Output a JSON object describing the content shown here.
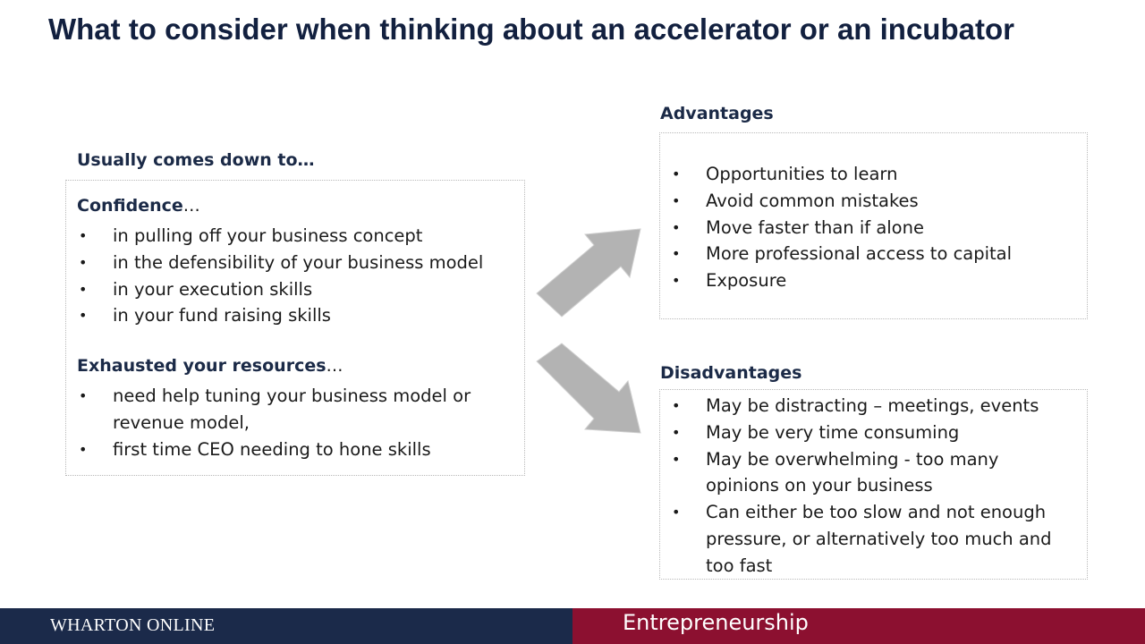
{
  "title": "What to consider when thinking about an accelerator or an incubator",
  "left": {
    "label": "Usually comes down to…",
    "confidence": {
      "heading": "Confidence",
      "suffix": "…",
      "items": [
        "in pulling off your business concept",
        "in the defensibility of your business model",
        "in your execution skills",
        "in your fund raising skills"
      ]
    },
    "exhausted": {
      "heading": "Exhausted your resources",
      "suffix": "…",
      "items": [
        "need help tuning your business model or revenue model,",
        "first time CEO needing to hone skills"
      ]
    }
  },
  "advantages": {
    "label": "Advantages",
    "items": [
      "Opportunities to learn",
      "Avoid common mistakes",
      "Move faster than if alone",
      "More professional access to capital",
      "Exposure"
    ]
  },
  "disadvantages": {
    "label": "Disadvantages",
    "items": [
      "May be distracting – meetings, events",
      "May be very time consuming",
      "May be overwhelming -  too many opinions on your business",
      "Can either be too slow and not enough pressure, or alternatively too much and too fast"
    ]
  },
  "bullet_glyph": "•",
  "footer": {
    "left_text": "WHARTON ONLINE",
    "right_text": "Entrepreneurship"
  },
  "colors": {
    "title": "#12203f",
    "footer_left_bg": "#1b2a4a",
    "footer_right_bg": "#8c1030",
    "arrow": "#b3b3b3"
  }
}
